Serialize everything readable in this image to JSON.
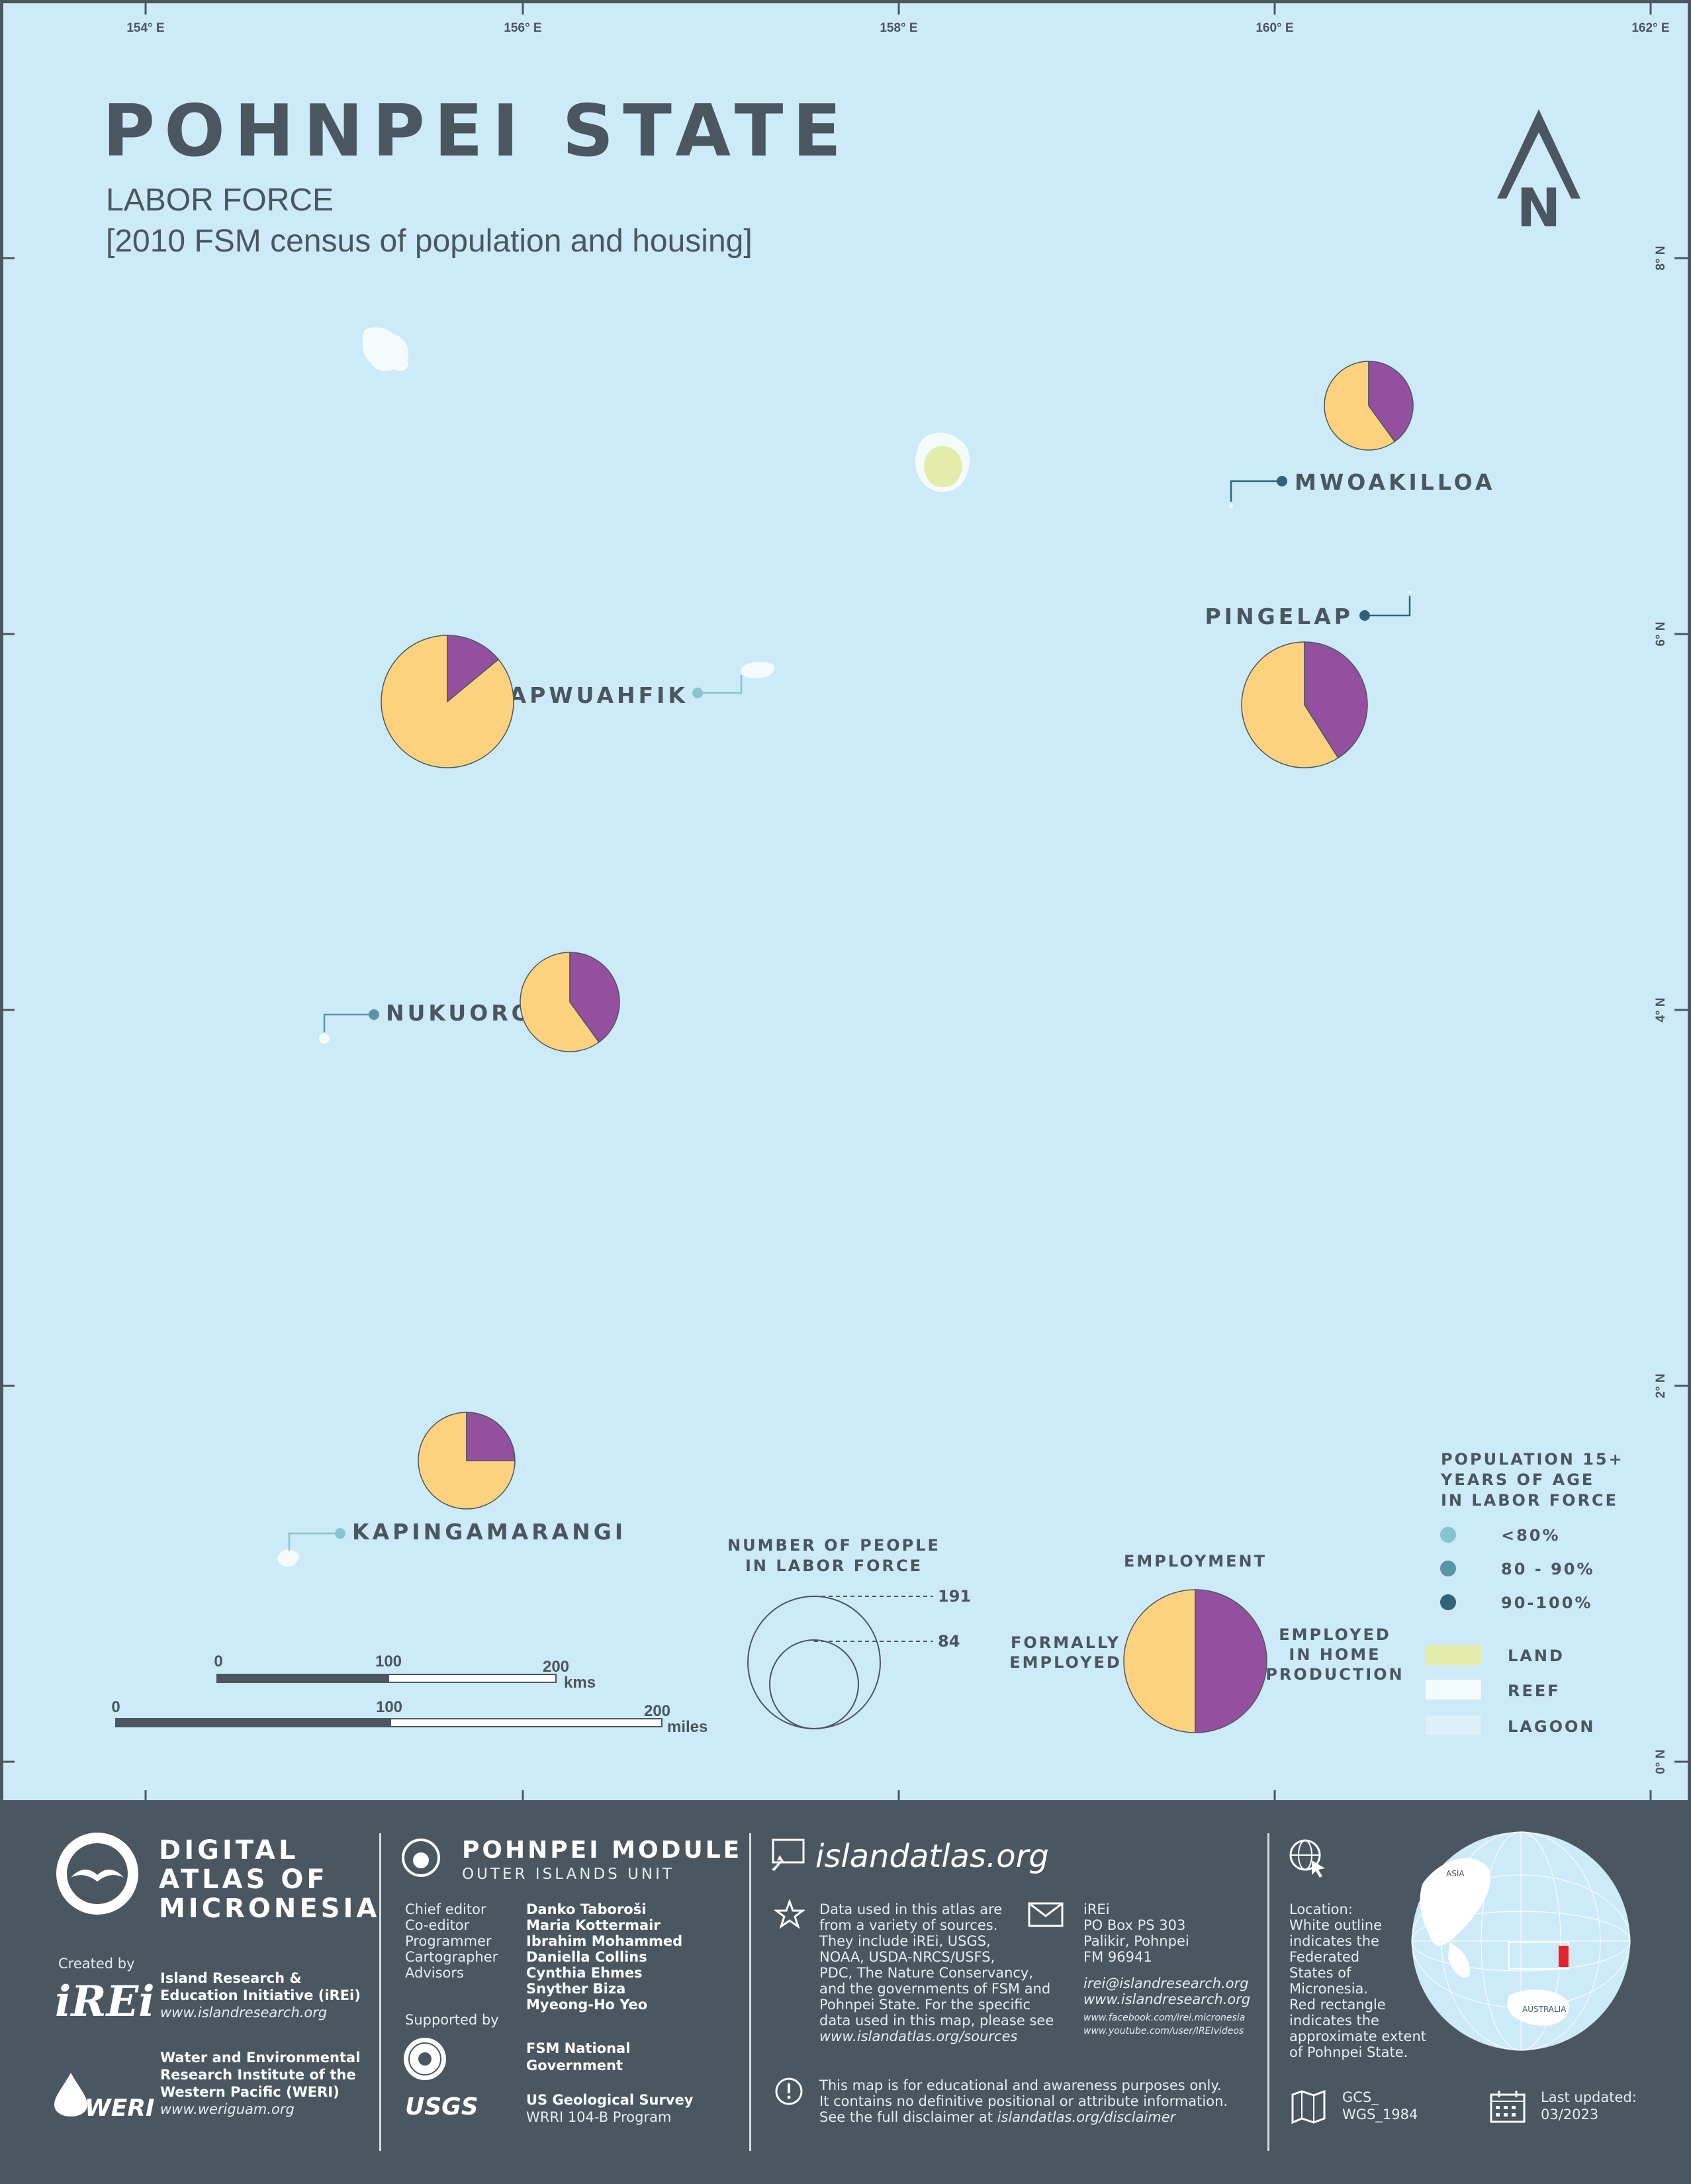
{
  "title": "POHNPEI STATE",
  "subtitle": "LABOR FORCE",
  "subtitle2": "[2010 FSM census of population and housing]",
  "north_label": "N",
  "longitude_ticks": [
    "154° E",
    "156° E",
    "158° E",
    "160° E",
    "162° E"
  ],
  "latitude_ticks": [
    "8° N",
    "6° N",
    "4° N",
    "2° N",
    "0° N"
  ],
  "colors": {
    "ocean": "#cdeaf8",
    "formally_employed": "#fdd27e",
    "home_production": "#94509f",
    "land": "#e4ecac",
    "reef": "#f4fbfd",
    "lagoon": "#dcf0f8",
    "dot_lt80": "#86c4d0",
    "dot_80_90": "#5a95a6",
    "dot_90_100": "#2f6478",
    "text": "#4a5660"
  },
  "chart_data": {
    "type": "pie",
    "categories": [
      "Formally employed",
      "Employed in home production"
    ],
    "series": [
      {
        "name": "MWOAKILLOA",
        "values": [
          60,
          40
        ]
      },
      {
        "name": "PINGELAP",
        "values": [
          59,
          41
        ]
      },
      {
        "name": "SAPWUAHFIK",
        "values": [
          86,
          14
        ]
      },
      {
        "name": "NUKUORO",
        "values": [
          60,
          40
        ]
      },
      {
        "name": "KAPINGAMARANGI",
        "values": [
          75,
          25
        ]
      }
    ]
  },
  "islands": [
    {
      "name": "MWOAKILLOA",
      "labor_force_share": "90-100%",
      "pie_values": [
        60,
        40
      ]
    },
    {
      "name": "PINGELAP",
      "labor_force_share": "90-100%",
      "pie_values": [
        59,
        41
      ]
    },
    {
      "name": "SAPWUAHFIK",
      "labor_force_share": "<80%",
      "pie_values": [
        86,
        14
      ]
    },
    {
      "name": "NUKUORO",
      "labor_force_share": "80 - 90%",
      "pie_values": [
        60,
        40
      ]
    },
    {
      "name": "KAPINGAMARANGI",
      "labor_force_share": "<80%",
      "pie_values": [
        75,
        25
      ]
    }
  ],
  "legend": {
    "size_title_1": "NUMBER OF PEOPLE",
    "size_title_2": "IN LABOR FORCE",
    "size_max": "191",
    "size_min": "84",
    "employment_title": "EMPLOYMENT",
    "formally_1": "FORMALLY",
    "formally_2": "EMPLOYED",
    "home_1": "EMPLOYED",
    "home_2": "IN HOME",
    "home_3": "PRODUCTION",
    "pop_title_1": "POPULATION 15+",
    "pop_title_2": "YEARS OF AGE",
    "pop_title_3": "IN LABOR FORCE",
    "pop_cls_1": "<80%",
    "pop_cls_2": "80 - 90%",
    "pop_cls_3": "90-100%",
    "land": "LAND",
    "reef": "REEF",
    "lagoon": "LAGOON"
  },
  "scale": {
    "km_0": "0",
    "km_100": "100",
    "km_200": "200",
    "km_unit": "kms",
    "mi_0": "0",
    "mi_100": "100",
    "mi_200": "200",
    "mi_unit": "miles"
  },
  "footer": {
    "atlas_1": "DIGITAL",
    "atlas_2": "ATLAS OF",
    "atlas_3": "MICRONESIA",
    "created_by": "Created by",
    "irei_logo": "iREi",
    "irei_name_1": "Island Research &",
    "irei_name_2": "Education Initiative (iREi)",
    "irei_url": "www.islandresearch.org",
    "weri_logo": "WERI",
    "weri_name_1": "Water and Environmental",
    "weri_name_2": "Research Institute of the",
    "weri_name_3": "Western Pacific (WERI)",
    "weri_url": "www.weriguam.org",
    "module_title": "POHNPEI MODULE",
    "module_sub": "OUTER ISLANDS UNIT",
    "roles": [
      "Chief editor",
      "Co-editor",
      "Programmer",
      "Cartographer",
      "Advisors"
    ],
    "people": [
      "Danko Taboroši",
      "Maria Kottermair",
      "Ibrahim Mohammed",
      "Daniella Collins",
      "Cynthia Ehmes",
      "Snyther Biza",
      "Myeong-Ho Yeo"
    ],
    "supported_by": "Supported by",
    "fsm_1": "FSM National",
    "fsm_2": "Government",
    "usgs_logo": "USGS",
    "usgs_1": "US Geological Survey",
    "usgs_2": "WRRI 104-B Program",
    "site": "islandatlas.org",
    "data_text": [
      "Data used in this atlas are",
      "from a variety of sources.",
      "They include iREi, USGS,",
      "NOAA, USDA-NRCS/USFS,",
      "PDC, The Nature Conservancy,",
      "and the governments of FSM and",
      "Pohnpei State. For the specific",
      "data used in this map, please see"
    ],
    "data_url": "www.islandatlas.org/sources",
    "contact_lines": [
      "iREi",
      "PO Box PS 303",
      "Palikir, Pohnpei",
      "FM 96941"
    ],
    "contact_email": "irei@islandresearch.org",
    "contact_web": "www.islandresearch.org",
    "contact_fb": "www.facebook.com/irei.micronesia",
    "contact_yt": "www.youtube.com/user/IREIvideos",
    "disclaimer_1": "This map is for educational and awareness purposes only.",
    "disclaimer_2": "It contains no definitive positional or attribute information.",
    "disclaimer_3a": "See the full disclaimer at ",
    "disclaimer_3b": "islandatlas.org/disclaimer",
    "location_text": [
      "Location:",
      "White outline",
      "indicates the",
      "Federated",
      "States of",
      "Micronesia.",
      "Red rectangle",
      "indicates the",
      "approximate extent",
      "of Pohnpei State."
    ],
    "globe_label_1": "ASIA",
    "globe_label_2": "AUSTRALIA",
    "gcs_1": "GCS_",
    "gcs_2": "WGS_1984",
    "updated_1": "Last updated:",
    "updated_2": "03/2023"
  }
}
